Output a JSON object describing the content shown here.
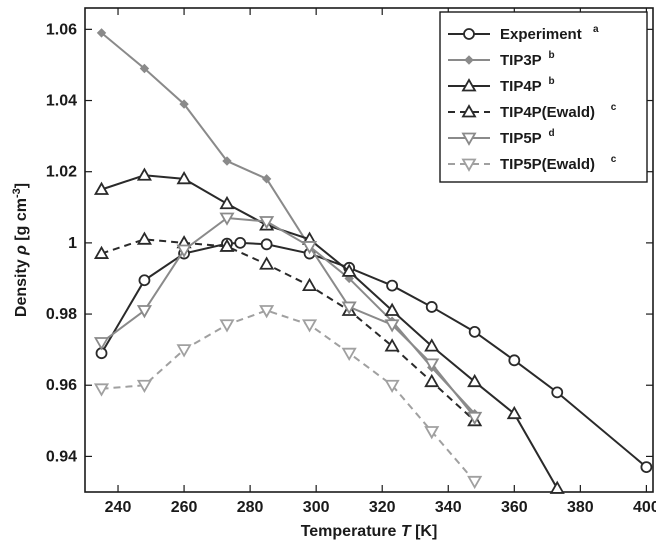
{
  "chart_data": {
    "type": "line",
    "xlabel": "Temperature",
    "xlabel_var": "T",
    "xlabel_unit": "[K]",
    "ylabel": "Density",
    "ylabel_var": "ρ",
    "ylabel_unit": "[g cm",
    "ylabel_unit_exp": "-3",
    "ylabel_unit_close": "]",
    "xlim": [
      230,
      402
    ],
    "ylim": [
      0.93,
      1.066
    ],
    "xticks": [
      240,
      260,
      280,
      300,
      320,
      340,
      360,
      380,
      400
    ],
    "yticks": [
      0.94,
      0.96,
      0.98,
      1.0,
      1.02,
      1.04,
      1.06
    ],
    "xtick_labels": [
      "240",
      "260",
      "280",
      "300",
      "320",
      "340",
      "360",
      "380",
      "400"
    ],
    "ytick_labels": [
      "0.94",
      "0.96",
      "0.98",
      "1",
      "1.02",
      "1.04",
      "1.06"
    ],
    "grid": false,
    "legend_position": "top-right",
    "series": [
      {
        "name": "Experiment",
        "sup": "a",
        "color": "#2a2a2a",
        "dash": "solid",
        "marker": "circle",
        "x": [
          235,
          248,
          260,
          273,
          277,
          285,
          298,
          310,
          323,
          335,
          348,
          360,
          373,
          400
        ],
        "y": [
          0.969,
          0.9895,
          0.997,
          0.9998,
          1.0,
          0.9996,
          0.997,
          0.993,
          0.988,
          0.982,
          0.975,
          0.967,
          0.958,
          0.937
        ]
      },
      {
        "name": "TIP3P",
        "sup": "b",
        "color": "#8a8a8a",
        "dash": "solid",
        "marker": "diamond",
        "x": [
          235,
          248,
          260,
          273,
          285,
          298,
          310,
          323,
          335,
          348
        ],
        "y": [
          1.059,
          1.049,
          1.039,
          1.023,
          1.018,
          0.999,
          0.99,
          0.978,
          0.965,
          0.952
        ]
      },
      {
        "name": "TIP4P",
        "sup": "b",
        "color": "#2a2a2a",
        "dash": "solid",
        "marker": "triangle-up",
        "x": [
          235,
          248,
          260,
          273,
          285,
          298,
          310,
          323,
          335,
          348,
          360,
          373
        ],
        "y": [
          1.015,
          1.019,
          1.018,
          1.011,
          1.005,
          1.001,
          0.992,
          0.981,
          0.971,
          0.961,
          0.952,
          0.931
        ]
      },
      {
        "name": "TIP4P(Ewald)",
        "sup": "c",
        "color": "#2a2a2a",
        "dash": "dashed",
        "marker": "triangle-up",
        "x": [
          235,
          248,
          260,
          273,
          285,
          298,
          310,
          323,
          335,
          348
        ],
        "y": [
          0.997,
          1.001,
          1.0,
          0.999,
          0.994,
          0.988,
          0.981,
          0.971,
          0.961,
          0.95
        ]
      },
      {
        "name": "TIP5P",
        "sup": "d",
        "color": "#8a8a8a",
        "dash": "solid",
        "marker": "triangle-down",
        "x": [
          235,
          248,
          260,
          273,
          285,
          298,
          310,
          323,
          335,
          348
        ],
        "y": [
          0.972,
          0.981,
          0.998,
          1.007,
          1.006,
          0.999,
          0.982,
          0.977,
          0.966,
          0.951
        ]
      },
      {
        "name": "TIP5P(Ewald)",
        "sup": "c",
        "color": "#a0a0a0",
        "dash": "dashed",
        "marker": "triangle-down",
        "x": [
          235,
          248,
          260,
          273,
          285,
          298,
          310,
          323,
          335,
          348
        ],
        "y": [
          0.959,
          0.96,
          0.97,
          0.977,
          0.981,
          0.977,
          0.969,
          0.96,
          0.947,
          0.933
        ]
      }
    ]
  }
}
